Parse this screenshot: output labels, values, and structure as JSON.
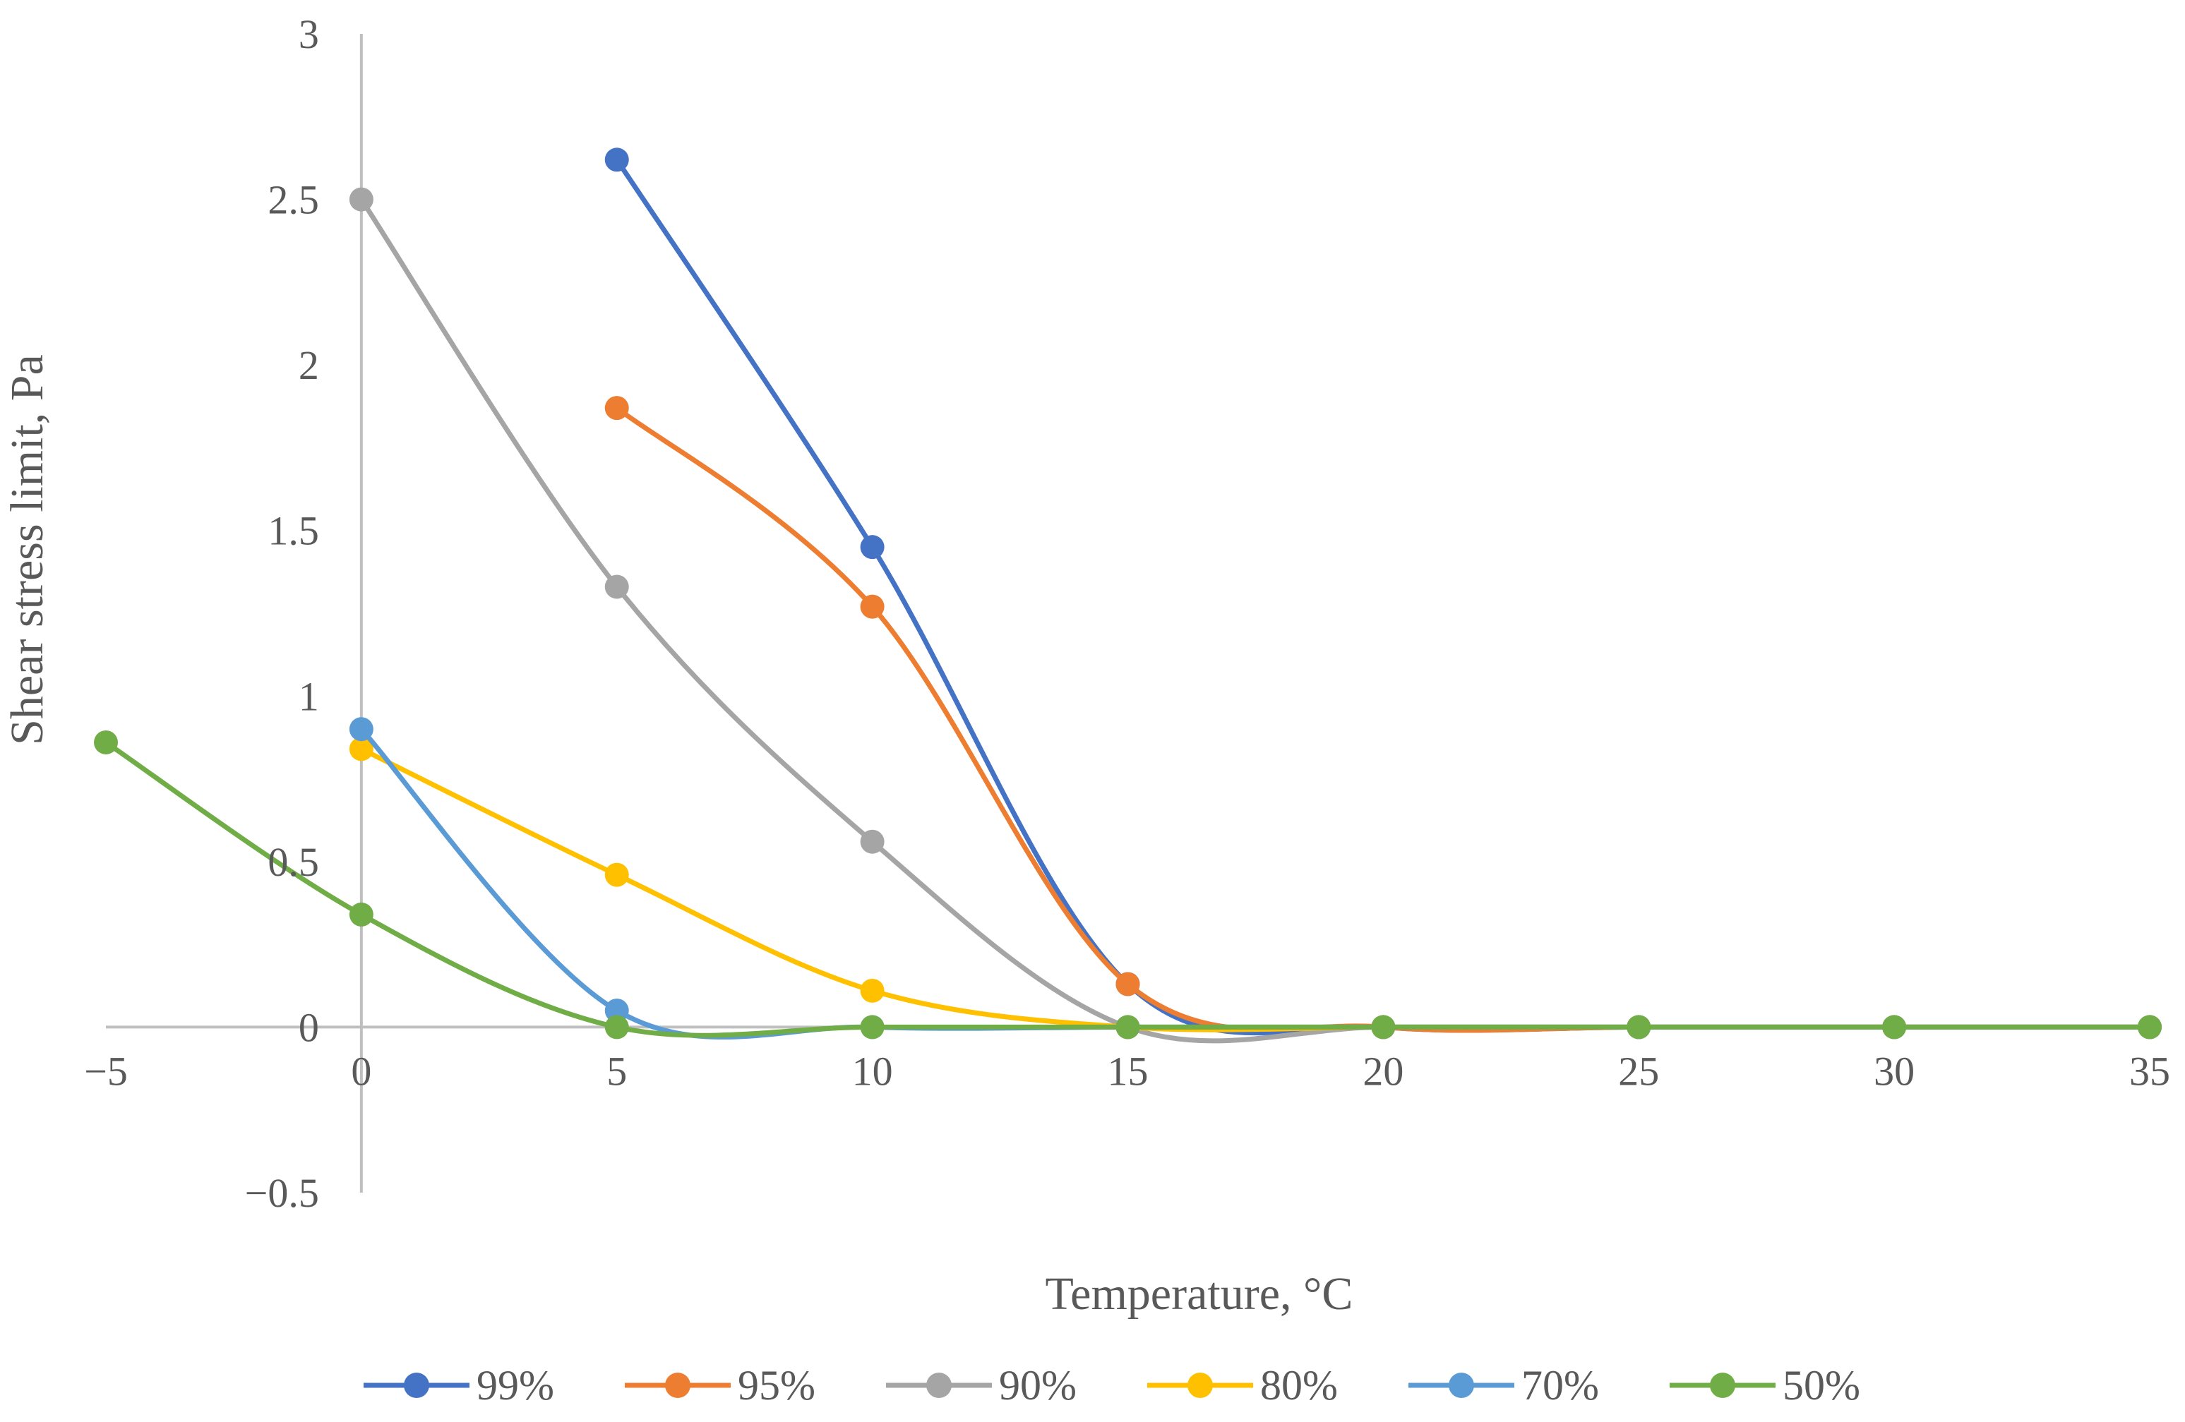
{
  "chart_data": {
    "type": "line",
    "title": "",
    "xlabel": "Temperature, °C",
    "ylabel": "Shear stress limit, Pa",
    "xlim": [
      -5,
      35
    ],
    "ylim": [
      -0.5,
      3
    ],
    "x_ticks": [
      "−5",
      "0",
      "5",
      "10",
      "15",
      "20",
      "25",
      "30",
      "35"
    ],
    "y_ticks": [
      "−0.5",
      "0",
      "0.5",
      "1",
      "1.5",
      "2",
      "2.5",
      "3"
    ],
    "x_tick_values": [
      -5,
      0,
      5,
      10,
      15,
      20,
      25,
      30,
      35
    ],
    "y_tick_values": [
      -0.5,
      0,
      0.5,
      1,
      1.5,
      2,
      2.5,
      3
    ],
    "grid": false,
    "smooth": true,
    "legend_position": "bottom",
    "series": [
      {
        "name": "99%",
        "color": "#4472C4",
        "x": [
          5,
          10,
          15,
          20,
          25,
          30,
          35
        ],
        "values": [
          2.62,
          1.45,
          0.13,
          0,
          0,
          0,
          0
        ]
      },
      {
        "name": "95%",
        "color": "#ED7D31",
        "x": [
          5,
          10,
          15,
          20,
          25,
          30,
          35
        ],
        "values": [
          1.87,
          1.27,
          0.13,
          0,
          0,
          0,
          0
        ]
      },
      {
        "name": "90%",
        "color": "#A5A5A5",
        "x": [
          0,
          5,
          10,
          15,
          20,
          25,
          30,
          35
        ],
        "values": [
          2.5,
          1.33,
          0.56,
          0,
          0,
          0,
          0,
          0
        ]
      },
      {
        "name": "80%",
        "color": "#FFC000",
        "x": [
          0,
          5,
          10,
          15,
          20,
          25,
          30,
          35
        ],
        "values": [
          0.84,
          0.46,
          0.11,
          0,
          0,
          0,
          0,
          0
        ]
      },
      {
        "name": "70%",
        "color": "#5B9BD5",
        "x": [
          0,
          5,
          10,
          15,
          20,
          25,
          30,
          35
        ],
        "values": [
          0.9,
          0.05,
          0,
          0,
          0,
          0,
          0,
          0
        ]
      },
      {
        "name": "50%",
        "color": "#70AD47",
        "x": [
          -5,
          0,
          5,
          10,
          15,
          20,
          25,
          30,
          35
        ],
        "values": [
          0.86,
          0.34,
          0,
          0,
          0,
          0,
          0,
          0,
          0
        ]
      }
    ]
  }
}
